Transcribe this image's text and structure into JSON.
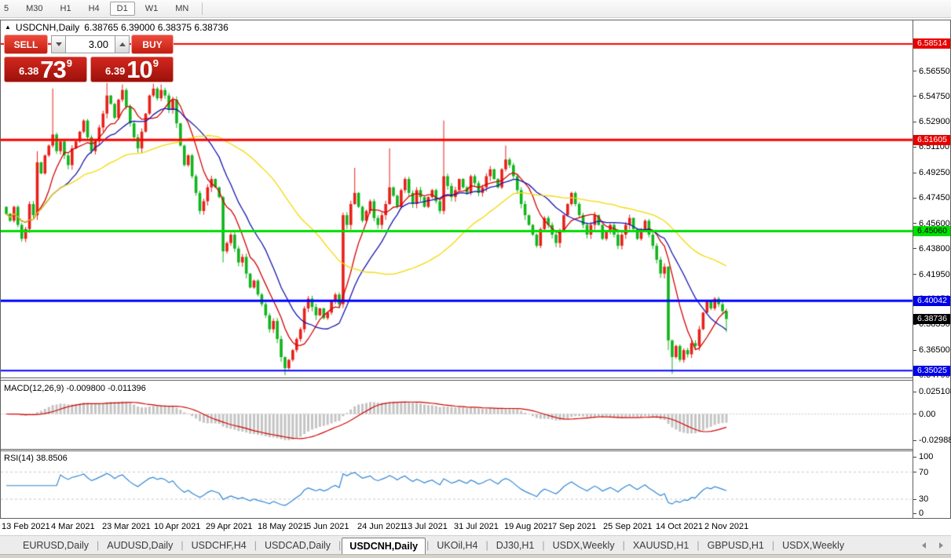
{
  "toolbar": {
    "buttons": [
      {
        "label": "5",
        "active": false
      },
      {
        "label": "M30",
        "active": false
      },
      {
        "label": "H1",
        "active": false
      },
      {
        "label": "H4",
        "active": false
      },
      {
        "label": "D1",
        "active": true
      },
      {
        "label": "W1",
        "active": false
      },
      {
        "label": "MN",
        "active": false
      }
    ]
  },
  "chart": {
    "title": {
      "symbol": "USDCNH,Daily",
      "ohlc": "6.38765 6.39000 6.38375 6.38736"
    },
    "trade_panel": {
      "sell_label": "SELL",
      "buy_label": "BUY",
      "volume": "3.00",
      "sell_price": {
        "small": "6.38",
        "big": "73",
        "sup": "9"
      },
      "buy_price": {
        "small": "6.39",
        "big": "10",
        "sup": "9"
      }
    },
    "price_axis": {
      "ticks": [
        "6.58350",
        "6.56550",
        "6.54750",
        "6.52900",
        "6.51100",
        "6.49250",
        "6.47450",
        "6.45600",
        "6.43800",
        "6.41950",
        "6.40150",
        "6.38350",
        "6.36500",
        "6.34700"
      ],
      "badges": [
        {
          "text": "6.58514",
          "bg": "#e60000",
          "fg": "#ffffff"
        },
        {
          "text": "6.51605",
          "bg": "#e60000",
          "fg": "#ffffff"
        },
        {
          "text": "6.45060",
          "bg": "#00e000",
          "fg": "#000000"
        },
        {
          "text": "6.40042",
          "bg": "#0000e6",
          "fg": "#ffffff"
        },
        {
          "text": "6.38736",
          "bg": "#000000",
          "fg": "#ffffff"
        },
        {
          "text": "6.35025",
          "bg": "#0000e6",
          "fg": "#ffffff"
        }
      ]
    },
    "date_axis": {
      "labels": [
        "13 Feb 2021",
        "4 Mar 2021",
        "23 Mar 2021",
        "10 Apr 2021",
        "29 Apr 2021",
        "18 May 2021",
        "5 Jun 2021",
        "24 Jun 2021",
        "13 Jul 2021",
        "31 Jul 2021",
        "19 Aug 2021",
        "7 Sep 2021",
        "25 Sep 2021",
        "14 Oct 2021",
        "2 Nov 2021"
      ]
    }
  },
  "chart_data": {
    "type": "candlestick",
    "symbol": "USDCNH",
    "timeframe": "Daily",
    "ohlc_display": {
      "open": 6.38765,
      "high": 6.39,
      "low": 6.38375,
      "close": 6.38736
    },
    "price_range": {
      "min": 6.3459,
      "max": 6.602
    },
    "x_labels": [
      "13 Feb 2021",
      "4 Mar 2021",
      "23 Mar 2021",
      "10 Apr 2021",
      "29 Apr 2021",
      "18 May 2021",
      "5 Jun 2021",
      "24 Jun 2021",
      "13 Jul 2021",
      "31 Jul 2021",
      "19 Aug 2021",
      "7 Sep 2021",
      "25 Sep 2021",
      "14 Oct 2021",
      "2 Nov 2021"
    ],
    "up_color": "#e8201a",
    "down_color": "#11b41c",
    "open_rule": "previous_close",
    "first_open": 6.468,
    "closes": [
      6.463,
      6.458,
      6.468,
      6.455,
      6.445,
      6.452,
      6.47,
      6.462,
      6.5,
      6.492,
      6.505,
      6.512,
      6.52,
      6.508,
      6.515,
      6.505,
      6.498,
      6.51,
      6.515,
      6.522,
      6.53,
      6.518,
      6.508,
      6.515,
      6.525,
      6.535,
      6.548,
      6.542,
      6.532,
      6.545,
      6.552,
      6.54,
      6.528,
      6.518,
      6.51,
      6.522,
      6.535,
      6.548,
      6.553,
      6.546,
      6.552,
      6.548,
      6.538,
      6.545,
      6.528,
      6.512,
      6.498,
      6.505,
      6.49,
      6.478,
      6.465,
      6.472,
      6.482,
      6.488,
      6.482,
      6.475,
      6.436,
      6.442,
      6.448,
      6.438,
      6.428,
      6.432,
      6.42,
      6.41,
      6.415,
      6.405,
      6.398,
      6.39,
      6.38,
      6.386,
      6.373,
      6.36,
      6.352,
      6.358,
      6.365,
      6.373,
      6.38,
      6.395,
      6.402,
      6.396,
      6.39,
      6.395,
      6.388,
      6.392,
      6.4,
      6.405,
      6.398,
      6.462,
      6.455,
      6.47,
      6.478,
      6.468,
      6.458,
      6.465,
      6.472,
      6.46,
      6.455,
      6.462,
      6.47,
      6.482,
      6.476,
      6.468,
      6.48,
      6.488,
      6.478,
      6.47,
      6.48,
      6.475,
      6.468,
      6.475,
      6.48,
      6.472,
      6.465,
      6.49,
      6.483,
      6.475,
      6.48,
      6.488,
      6.482,
      6.478,
      6.49,
      6.485,
      6.478,
      6.482,
      6.49,
      6.495,
      6.488,
      6.482,
      6.495,
      6.502,
      6.498,
      6.49,
      6.48,
      6.47,
      6.462,
      6.455,
      6.448,
      6.44,
      6.452,
      6.46,
      6.455,
      6.448,
      6.442,
      6.45,
      6.462,
      6.47,
      6.478,
      6.47,
      6.462,
      6.455,
      6.448,
      6.455,
      6.462,
      6.455,
      6.445,
      6.45,
      6.455,
      6.448,
      6.44,
      6.448,
      6.455,
      6.46,
      6.452,
      6.445,
      6.452,
      6.458,
      6.448,
      6.44,
      6.43,
      6.42,
      6.425,
      6.372,
      6.36,
      6.368,
      6.358,
      6.365,
      6.362,
      6.37,
      6.368,
      6.38,
      6.392,
      6.4,
      6.395,
      6.402,
      6.398,
      6.393,
      6.3874
    ],
    "wick_overrides": {
      "8": [
        6.508,
        null
      ],
      "12": [
        6.553,
        null
      ],
      "26": [
        6.557,
        null
      ],
      "30": [
        6.556,
        null
      ],
      "38": [
        6.5565,
        null
      ],
      "40": [
        6.556,
        null
      ],
      "56": [
        null,
        6.428
      ],
      "72": [
        null,
        6.347
      ],
      "90": [
        6.496,
        null
      ],
      "99": [
        6.51,
        null
      ],
      "113": [
        6.53,
        null
      ],
      "129": [
        6.512,
        null
      ],
      "171": [
        null,
        6.365
      ],
      "172": [
        null,
        6.348
      ],
      "186": [
        null,
        6.378
      ]
    },
    "moving_averages": [
      {
        "period": 8,
        "color": "#d40000"
      },
      {
        "period": 16,
        "color": "#1515b0"
      },
      {
        "period": 45,
        "color": "#f5d800"
      }
    ],
    "levels": [
      {
        "price": 6.58514,
        "color": "#ff0000",
        "width": 2
      },
      {
        "price": 6.51605,
        "color": "#ff0000",
        "width": 3
      },
      {
        "price": 6.4506,
        "color": "#00dd00",
        "width": 3
      },
      {
        "price": 6.40042,
        "color": "#0000ff",
        "width": 3
      },
      {
        "price": 6.35025,
        "color": "#0000ff",
        "width": 2
      }
    ],
    "current_price": 6.38736,
    "indicators": [
      {
        "name": "MACD",
        "label": "MACD(12,26,9) -0.009800 -0.011396",
        "params": [
          12,
          26,
          9
        ],
        "main_value": -0.0098,
        "signal_value": -0.011396,
        "axis_labels": [
          "0.025108",
          "0.00",
          "-0.029881"
        ],
        "hist_color": "#c4c4c4",
        "signal_color": "#d40000"
      },
      {
        "name": "RSI",
        "label": "RSI(14) 38.8506",
        "params": [
          14
        ],
        "value": 38.8506,
        "axis_labels": [
          "100",
          "70",
          "30",
          "0"
        ],
        "guide_levels": [
          70,
          30
        ],
        "line_color": "#3087d4"
      }
    ]
  },
  "tabs": {
    "items": [
      {
        "label": "EURUSD,Daily",
        "active": false
      },
      {
        "label": "AUDUSD,Daily",
        "active": false
      },
      {
        "label": "USDCHF,H4",
        "active": false
      },
      {
        "label": "USDCAD,Daily",
        "active": false
      },
      {
        "label": "USDCNH,Daily",
        "active": true
      },
      {
        "label": "UKOil,H4",
        "active": false
      },
      {
        "label": "DJ30,H1",
        "active": false
      },
      {
        "label": "USDX,Weekly",
        "active": false
      },
      {
        "label": "XAUUSD,H1",
        "active": false
      },
      {
        "label": "GBPUSD,H1",
        "active": false
      },
      {
        "label": "USDX,Weekly",
        "active": false
      }
    ]
  }
}
